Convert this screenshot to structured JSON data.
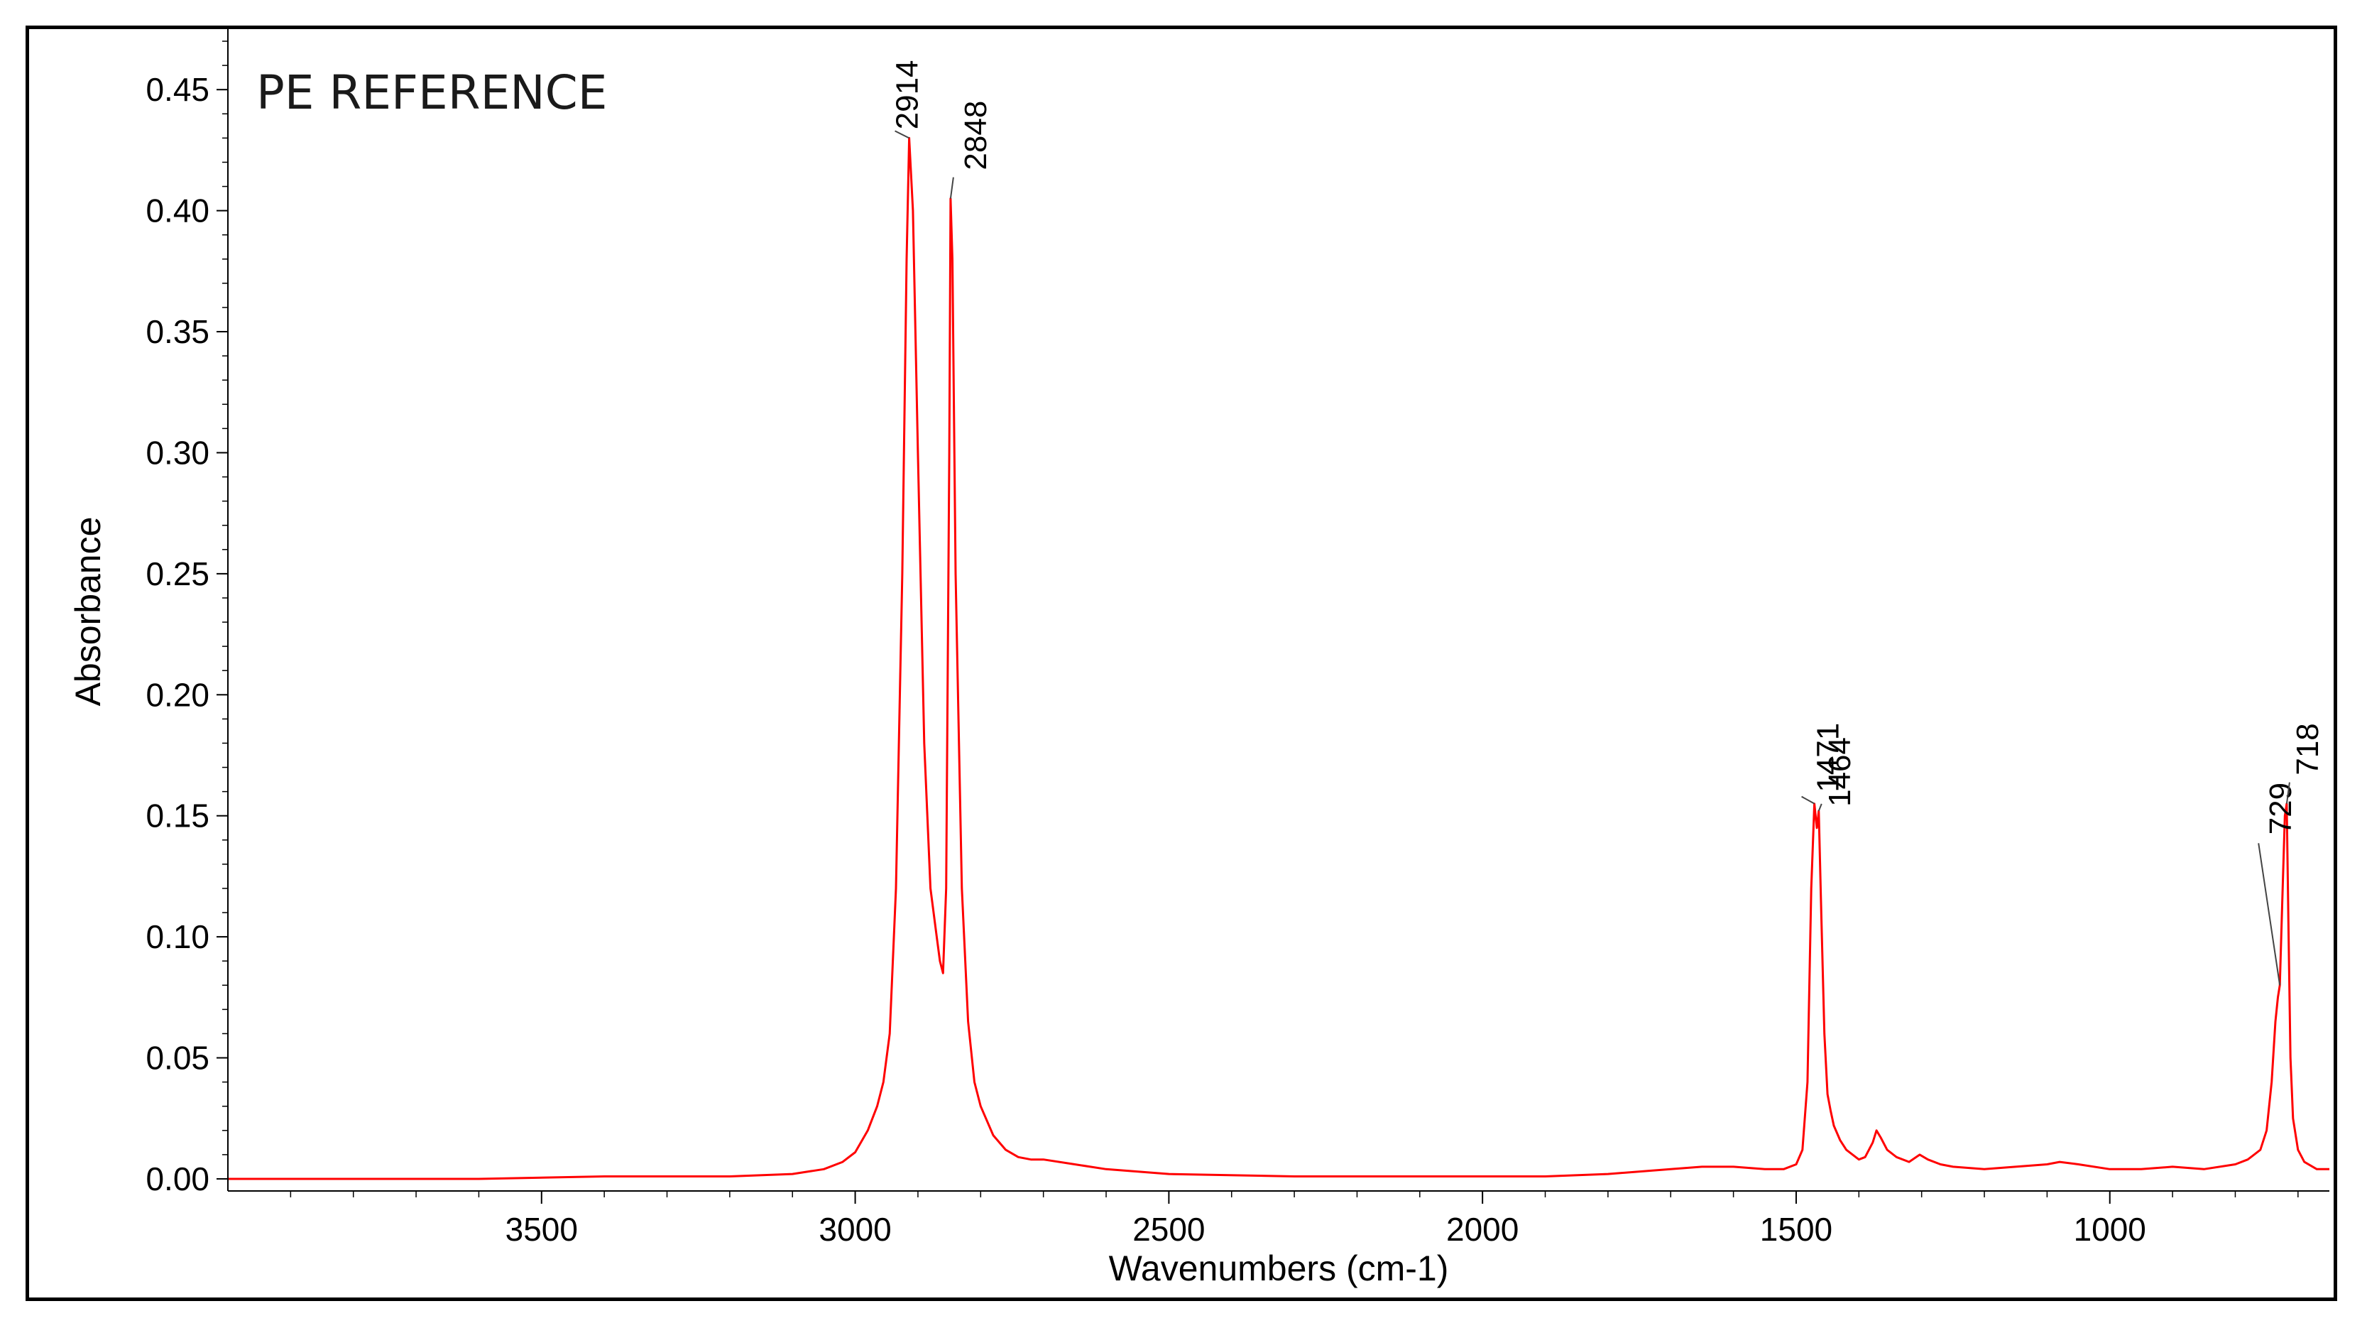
{
  "chart_data": {
    "type": "line",
    "title": "PE REFERENCE",
    "xlabel": "Wavenumbers (cm-1)",
    "ylabel": "Absorbance",
    "x_reversed": true,
    "xlim": [
      4000,
      650
    ],
    "ylim": [
      -0.005,
      0.475
    ],
    "x_ticks": [
      3500,
      3000,
      2500,
      2000,
      1500,
      1000
    ],
    "x_tick_labels": [
      "3500",
      "3000",
      "2500",
      "2000",
      "1500",
      "1000"
    ],
    "y_ticks": [
      0.0,
      0.05,
      0.1,
      0.15,
      0.2,
      0.25,
      0.3,
      0.35,
      0.4,
      0.45
    ],
    "y_tick_labels": [
      "0.00",
      "0.05",
      "0.10",
      "0.15",
      "0.20",
      "0.25",
      "0.30",
      "0.35",
      "0.40",
      "0.45"
    ],
    "grid": false,
    "legend": "none",
    "series": [
      {
        "color": "#ff0000",
        "x": [
          4000,
          3600,
          3400,
          3200,
          3100,
          3050,
          3020,
          3000,
          2980,
          2965,
          2955,
          2945,
          2935,
          2925,
          2918,
          2914,
          2908,
          2900,
          2890,
          2880,
          2870,
          2865,
          2860,
          2855,
          2850,
          2848,
          2845,
          2840,
          2830,
          2820,
          2810,
          2800,
          2780,
          2760,
          2740,
          2720,
          2700,
          2650,
          2600,
          2500,
          2300,
          2100,
          1900,
          1800,
          1700,
          1650,
          1600,
          1550,
          1520,
          1500,
          1490,
          1482,
          1476,
          1471,
          1467,
          1464,
          1460,
          1455,
          1450,
          1445,
          1440,
          1430,
          1420,
          1410,
          1400,
          1390,
          1378,
          1372,
          1365,
          1355,
          1340,
          1320,
          1303,
          1290,
          1270,
          1250,
          1200,
          1150,
          1100,
          1080,
          1050,
          1000,
          950,
          900,
          850,
          800,
          780,
          760,
          750,
          742,
          736,
          732,
          729,
          725,
          721,
          718,
          715,
          712,
          708,
          700,
          690,
          670,
          650
        ],
        "y": [
          0.0,
          0.0,
          0.001,
          0.001,
          0.002,
          0.004,
          0.007,
          0.011,
          0.02,
          0.03,
          0.04,
          0.06,
          0.12,
          0.25,
          0.38,
          0.43,
          0.4,
          0.3,
          0.18,
          0.12,
          0.1,
          0.09,
          0.085,
          0.12,
          0.3,
          0.405,
          0.38,
          0.25,
          0.12,
          0.065,
          0.04,
          0.03,
          0.018,
          0.012,
          0.009,
          0.008,
          0.008,
          0.006,
          0.004,
          0.002,
          0.001,
          0.001,
          0.001,
          0.002,
          0.004,
          0.005,
          0.005,
          0.004,
          0.004,
          0.006,
          0.012,
          0.04,
          0.12,
          0.155,
          0.145,
          0.152,
          0.11,
          0.06,
          0.035,
          0.028,
          0.022,
          0.016,
          0.012,
          0.01,
          0.008,
          0.009,
          0.015,
          0.02,
          0.017,
          0.012,
          0.009,
          0.007,
          0.01,
          0.008,
          0.006,
          0.005,
          0.004,
          0.005,
          0.006,
          0.007,
          0.006,
          0.004,
          0.004,
          0.005,
          0.004,
          0.006,
          0.008,
          0.012,
          0.02,
          0.04,
          0.065,
          0.075,
          0.08,
          0.115,
          0.15,
          0.155,
          0.1,
          0.05,
          0.025,
          0.012,
          0.007,
          0.004,
          0.004
        ]
      }
    ],
    "annotations": [
      {
        "text": "2914",
        "x": 2914,
        "y": 0.43
      },
      {
        "text": "2848",
        "x": 2848,
        "y": 0.405
      },
      {
        "text": "1471",
        "x": 1471,
        "y": 0.155
      },
      {
        "text": "1464",
        "x": 1464,
        "y": 0.152
      },
      {
        "text": "729",
        "x": 729,
        "y": 0.08
      },
      {
        "text": "718",
        "x": 718,
        "y": 0.155
      }
    ]
  }
}
